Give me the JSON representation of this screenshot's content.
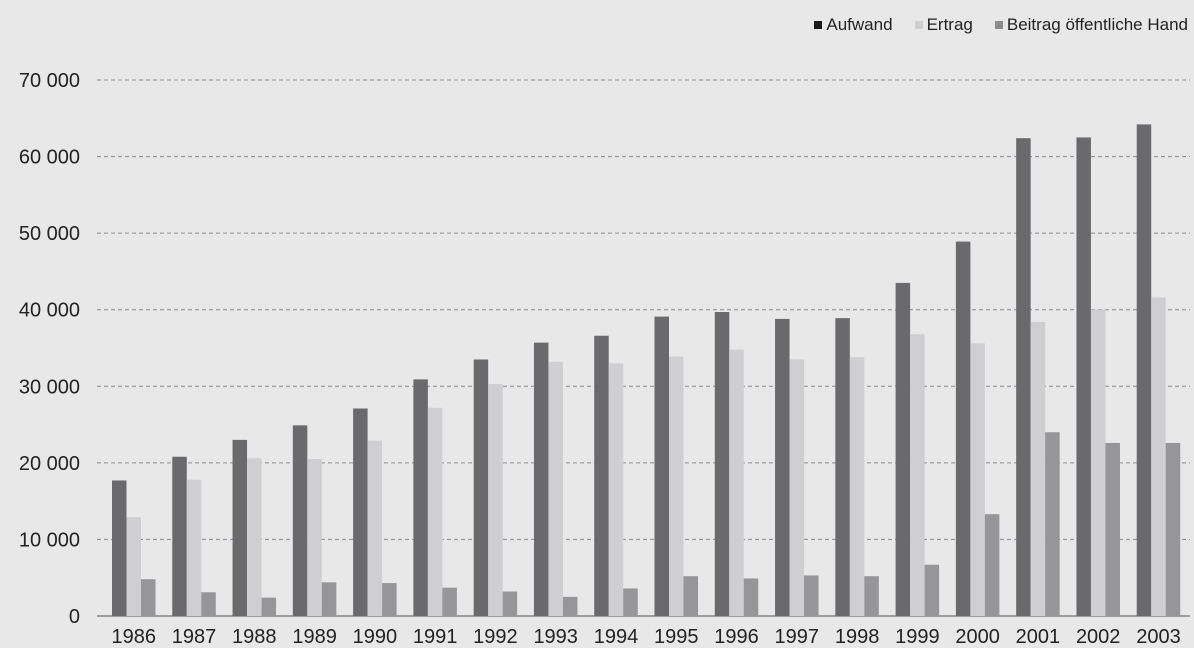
{
  "chart_data": {
    "type": "bar",
    "categories": [
      "1986",
      "1987",
      "1988",
      "1989",
      "1990",
      "1991",
      "1992",
      "1993",
      "1994",
      "1995",
      "1996",
      "1997",
      "1998",
      "1999",
      "2000",
      "2001",
      "2002",
      "2003"
    ],
    "series": [
      {
        "name": "Aufwand",
        "legend_color": "#1a1a1a",
        "color": "#6a6a6c",
        "values": [
          17700,
          20800,
          23000,
          24900,
          27100,
          30900,
          33500,
          35700,
          36600,
          39100,
          39700,
          38800,
          38900,
          43500,
          48900,
          62400,
          62500,
          64200
        ]
      },
      {
        "name": "Ertrag",
        "legend_color": "#d0d0d2",
        "color": "#cfcfd1",
        "values": [
          12900,
          17800,
          20600,
          20500,
          22900,
          27200,
          30300,
          33200,
          33000,
          33900,
          34800,
          33500,
          33800,
          36800,
          35600,
          38400,
          40000,
          41600
        ]
      },
      {
        "name": "Beitrag öffentliche Hand",
        "legend_color": "#8c8c8e",
        "color": "#969698",
        "values": [
          4800,
          3100,
          2400,
          4400,
          4300,
          3700,
          3200,
          2500,
          3600,
          5200,
          4900,
          5300,
          5200,
          6700,
          13300,
          24000,
          22600,
          22600
        ]
      }
    ],
    "yticks": [
      "0",
      "10 000",
      "20 000",
      "30 000",
      "40 000",
      "50 000",
      "60 000",
      "70 000"
    ],
    "ylim": [
      0,
      70000
    ],
    "grid": true,
    "grid_style": "dashed",
    "legend_position": "top-right"
  }
}
